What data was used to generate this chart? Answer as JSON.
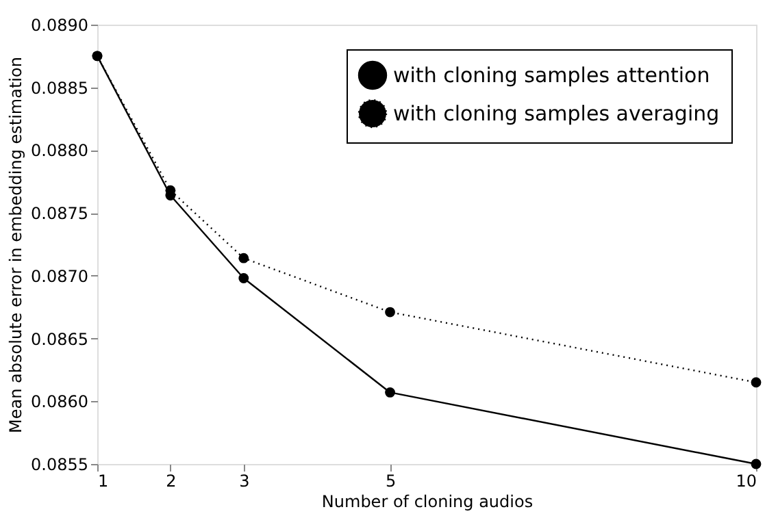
{
  "chart_data": {
    "type": "line",
    "xlabel": "Number of cloning audios",
    "ylabel": "Mean absolute error in embedding estimation",
    "x": [
      1,
      2,
      3,
      5,
      10
    ],
    "series": [
      {
        "name": "with cloning samples attention",
        "color": "#000000",
        "line_style": "solid",
        "values": [
          0.08875,
          0.08764,
          0.08698,
          0.08607,
          0.0855
        ]
      },
      {
        "name": "with cloning samples averaging",
        "color": "#000000",
        "line_style": "dotted",
        "values": [
          0.08875,
          0.08768,
          0.08714,
          0.08671,
          0.08615
        ]
      }
    ],
    "xlim": [
      1,
      10
    ],
    "xticks": [
      1,
      2,
      3,
      5,
      10
    ],
    "ylim": [
      0.0855,
      0.089
    ],
    "yticks": [
      {
        "value": 0.0855,
        "label": "0.0855"
      },
      {
        "value": 0.086,
        "label": "0.0860"
      },
      {
        "value": 0.0865,
        "label": "0.0865"
      },
      {
        "value": 0.087,
        "label": "0.0870"
      },
      {
        "value": 0.0875,
        "label": "0.0875"
      },
      {
        "value": 0.088,
        "label": "0.0880"
      },
      {
        "value": 0.0885,
        "label": "0.0885"
      },
      {
        "value": 0.089,
        "label": "0.0890"
      }
    ],
    "marker": "circle",
    "grid": false,
    "legend": "top right"
  }
}
